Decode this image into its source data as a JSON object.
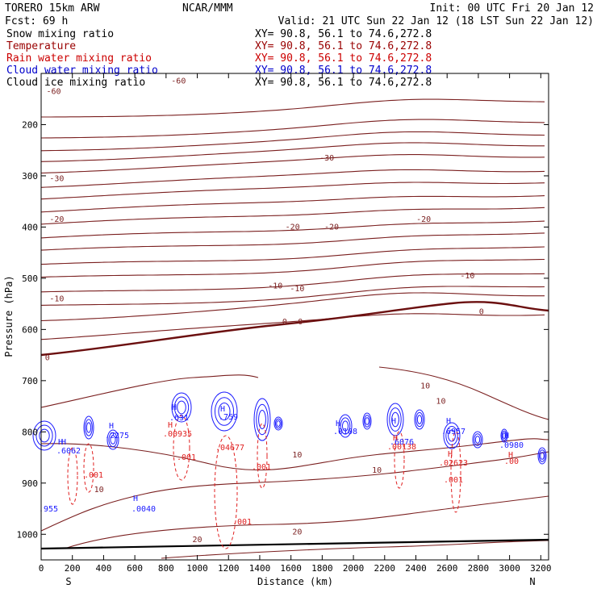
{
  "header": {
    "model": "TORERO  15km ARW",
    "org": "NCAR/MMM",
    "init": "Init: 00 UTC Fri 20 Jan 12",
    "fcst": "Fcst:   69 h",
    "valid": "Valid: 21 UTC Sun 22 Jan 12 (18 LST Sun 22 Jan 12)",
    "xs_text": "XY=  90.8, 56.1 to  74.6,272.8"
  },
  "fields": [
    {
      "name": "Snow mixing ratio",
      "color": "#000000"
    },
    {
      "name": "Temperature",
      "color": "#990000"
    },
    {
      "name": "Rain water mixing ratio",
      "color": "#cc0000"
    },
    {
      "name": "Cloud water mixing ratio",
      "color": "#0000cc"
    },
    {
      "name": "Cloud ice mixing ratio",
      "color": "#000000"
    }
  ],
  "colors": {
    "temperature": "#7a1f1f",
    "zero_isotherm": "#6b0f0f",
    "rain": "#e02020",
    "cloud_water": "#1a1aff",
    "ground": "#000000"
  },
  "chart_data": {
    "type": "contour",
    "xlabel": "Distance (km)",
    "ylabel": "Pressure (hPa)",
    "x_range": [
      0,
      3250
    ],
    "y_range": [
      1050,
      100
    ],
    "x_ticks": [
      "0",
      "200",
      "400",
      "600",
      "800",
      "1000",
      "1200",
      "1400",
      "1600",
      "1800",
      "2000",
      "2200",
      "2400",
      "2600",
      "2800",
      "3000",
      "3200"
    ],
    "y_ticks": [
      "200",
      "300",
      "400",
      "500",
      "600",
      "700",
      "800",
      "900",
      "1000"
    ],
    "x_start_label": "S",
    "x_end_label": "N",
    "temperature_labels": [
      "-60",
      "-60",
      "-30",
      "-30",
      "-20",
      "-20",
      "-20",
      "-20",
      "-10",
      "-10",
      "-10",
      "-10",
      "0",
      "0",
      "0",
      "0",
      "10",
      "10",
      "10",
      "10",
      "10",
      "20",
      "20"
    ],
    "temperature_labels_pos": [
      [
        80,
        140
      ],
      [
        880,
        120
      ],
      [
        1830,
        270
      ],
      [
        100,
        310
      ],
      [
        100,
        390
      ],
      [
        1610,
        405
      ],
      [
        1860,
        405
      ],
      [
        2450,
        390
      ],
      [
        100,
        545
      ],
      [
        1500,
        520
      ],
      [
        1640,
        525
      ],
      [
        2730,
        500
      ],
      [
        1560,
        590
      ],
      [
        1660,
        590
      ],
      [
        2820,
        570
      ],
      [
        40,
        660
      ],
      [
        2460,
        715
      ],
      [
        2560,
        745
      ],
      [
        1640,
        850
      ],
      [
        2150,
        880
      ],
      [
        370,
        918
      ],
      [
        1640,
        1000
      ],
      [
        1000,
        1015
      ]
    ],
    "rain_labels": [
      ".001",
      ".00935",
      ".001",
      ".04677",
      ".001",
      ".001",
      ".00138",
      ".02623",
      ".001",
      ".00"
    ],
    "cloud_labels": [
      ".6062",
      ".2275",
      ".631",
      ".759",
      ".0108",
      ".6076",
      ".6957",
      ".0980",
      ".955",
      ".0040"
    ],
    "max_markers": [
      "H",
      "H",
      "H",
      "H",
      "H",
      "H",
      "H",
      "H",
      "H",
      "H",
      "H",
      "H",
      "H",
      "H"
    ]
  }
}
